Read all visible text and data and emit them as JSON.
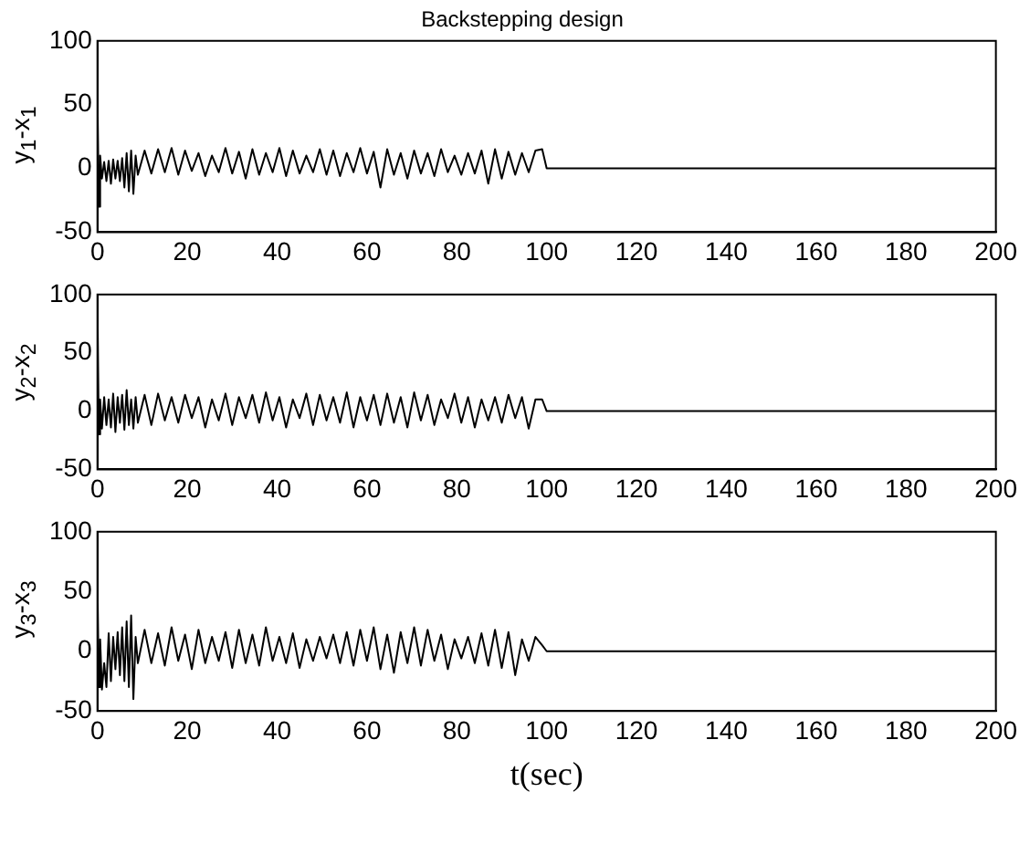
{
  "chart_data": [
    {
      "type": "line",
      "title": "Backstepping design",
      "ylabel": "y$_{1}$-x$_{1}$",
      "xlim": [
        0,
        200
      ],
      "xticks": [
        0,
        20,
        40,
        60,
        80,
        100,
        120,
        140,
        160,
        180,
        200
      ],
      "ylim": [
        -50,
        100
      ],
      "yticks": [
        -50,
        0,
        50,
        100
      ],
      "grid": false,
      "legend": false,
      "marker": "none",
      "line_style": "solid",
      "x": [
        0,
        0.3,
        0.6,
        1,
        1.5,
        2,
        2.5,
        3,
        3.5,
        4,
        4.5,
        5,
        5.5,
        6,
        6.5,
        7,
        7.5,
        8,
        8.5,
        9,
        10.5,
        12,
        13.5,
        15,
        16.5,
        18,
        19.5,
        21,
        22.5,
        24,
        25.5,
        27,
        28.5,
        30,
        31.5,
        33,
        34.5,
        36,
        37.5,
        39,
        40.5,
        42,
        43.5,
        45,
        46.5,
        48,
        49.5,
        51,
        52.5,
        54,
        55.5,
        57,
        58.5,
        60,
        61.5,
        63,
        64.5,
        66,
        67.5,
        69,
        70.5,
        72,
        73.5,
        75,
        76.5,
        78,
        79.5,
        81,
        82.5,
        84,
        85.5,
        87,
        88.5,
        90,
        91.5,
        93,
        94.5,
        96,
        97.5,
        99,
        100,
        200
      ],
      "series": [
        {
          "color": "#000000",
          "values": [
            60,
            -30,
            10,
            -8,
            5,
            -10,
            6,
            -12,
            7,
            -8,
            6,
            -10,
            8,
            -15,
            12,
            -18,
            14,
            -20,
            10,
            -5,
            14,
            -4,
            15,
            -3,
            16,
            -5,
            14,
            -2,
            12,
            -6,
            10,
            -3,
            16,
            -4,
            13,
            -8,
            15,
            -5,
            12,
            -3,
            16,
            -6,
            14,
            -4,
            10,
            -3,
            15,
            -5,
            14,
            -6,
            12,
            -3,
            16,
            -4,
            13,
            -15,
            15,
            -5,
            12,
            -8,
            14,
            -4,
            12,
            -6,
            15,
            -3,
            10,
            -5,
            12,
            -4,
            14,
            -12,
            15,
            -8,
            13,
            -5,
            12,
            -3,
            14,
            15,
            0,
            0
          ]
        }
      ]
    },
    {
      "type": "line",
      "ylabel": "y$_{2}$-x$_{2}$",
      "xlim": [
        0,
        200
      ],
      "xticks": [
        0,
        20,
        40,
        60,
        80,
        100,
        120,
        140,
        160,
        180,
        200
      ],
      "ylim": [
        -50,
        100
      ],
      "yticks": [
        -50,
        0,
        50,
        100
      ],
      "grid": false,
      "legend": false,
      "marker": "none",
      "line_style": "solid",
      "x": [
        0,
        0.3,
        0.6,
        1,
        1.5,
        2,
        2.5,
        3,
        3.5,
        4,
        4.5,
        5,
        5.5,
        6,
        6.5,
        7,
        7.5,
        8,
        8.5,
        9,
        10.5,
        12,
        13.5,
        15,
        16.5,
        18,
        19.5,
        21,
        22.5,
        24,
        25.5,
        27,
        28.5,
        30,
        31.5,
        33,
        34.5,
        36,
        37.5,
        39,
        40.5,
        42,
        43.5,
        45,
        46.5,
        48,
        49.5,
        51,
        52.5,
        54,
        55.5,
        57,
        58.5,
        60,
        61.5,
        63,
        64.5,
        66,
        67.5,
        69,
        70.5,
        72,
        73.5,
        75,
        76.5,
        78,
        79.5,
        81,
        82.5,
        84,
        85.5,
        87,
        88.5,
        90,
        91.5,
        93,
        94.5,
        96,
        97.5,
        99,
        100,
        200
      ],
      "series": [
        {
          "color": "#000000",
          "values": [
            95,
            -20,
            10,
            -15,
            12,
            -12,
            10,
            -14,
            15,
            -18,
            12,
            -10,
            14,
            -16,
            18,
            -12,
            10,
            -15,
            12,
            -10,
            14,
            -12,
            15,
            -8,
            12,
            -10,
            14,
            -6,
            12,
            -14,
            10,
            -8,
            15,
            -12,
            12,
            -6,
            14,
            -10,
            16,
            -8,
            12,
            -14,
            10,
            -6,
            15,
            -12,
            14,
            -8,
            12,
            -10,
            16,
            -14,
            12,
            -8,
            14,
            -12,
            15,
            -10,
            12,
            -14,
            16,
            -8,
            14,
            -12,
            10,
            -6,
            15,
            -10,
            12,
            -14,
            10,
            -8,
            12,
            -10,
            14,
            -6,
            12,
            -15,
            10,
            10,
            0,
            0
          ]
        }
      ]
    },
    {
      "type": "line",
      "ylabel": "y$_{3}$-x$_{3}$",
      "xlabel": "t(sec)",
      "xlim": [
        0,
        200
      ],
      "xticks": [
        0,
        20,
        40,
        60,
        80,
        100,
        120,
        140,
        160,
        180,
        200
      ],
      "ylim": [
        -50,
        100
      ],
      "yticks": [
        -50,
        0,
        50,
        100
      ],
      "grid": false,
      "legend": false,
      "marker": "none",
      "line_style": "solid",
      "x": [
        0,
        0.3,
        0.6,
        1,
        1.5,
        2,
        2.5,
        3,
        3.5,
        4,
        4.5,
        5,
        5.5,
        6,
        6.5,
        7,
        7.5,
        8,
        8.5,
        9,
        10.5,
        12,
        13.5,
        15,
        16.5,
        18,
        19.5,
        21,
        22.5,
        24,
        25.5,
        27,
        28.5,
        30,
        31.5,
        33,
        34.5,
        36,
        37.5,
        39,
        40.5,
        42,
        43.5,
        45,
        46.5,
        48,
        49.5,
        51,
        52.5,
        54,
        55.5,
        57,
        58.5,
        60,
        61.5,
        63,
        64.5,
        66,
        67.5,
        69,
        70.5,
        72,
        73.5,
        75,
        76.5,
        78,
        79.5,
        81,
        82.5,
        84,
        85.5,
        87,
        88.5,
        90,
        91.5,
        93,
        94.5,
        96,
        97.5,
        99,
        100,
        200
      ],
      "series": [
        {
          "color": "#000000",
          "values": [
            60,
            -30,
            10,
            -32,
            -10,
            -30,
            15,
            -25,
            12,
            -15,
            16,
            -20,
            20,
            -25,
            25,
            -30,
            30,
            -40,
            12,
            -10,
            18,
            -10,
            15,
            -12,
            20,
            -8,
            14,
            -15,
            18,
            -10,
            12,
            -8,
            16,
            -14,
            18,
            -10,
            14,
            -12,
            20,
            -8,
            12,
            -10,
            15,
            -14,
            10,
            -8,
            12,
            -6,
            14,
            -10,
            16,
            -12,
            18,
            -8,
            20,
            -15,
            14,
            -18,
            16,
            -10,
            20,
            -12,
            18,
            -8,
            14,
            -15,
            10,
            -6,
            12,
            -10,
            15,
            -12,
            18,
            -14,
            16,
            -20,
            10,
            -8,
            12,
            5,
            0,
            0
          ]
        }
      ]
    }
  ]
}
